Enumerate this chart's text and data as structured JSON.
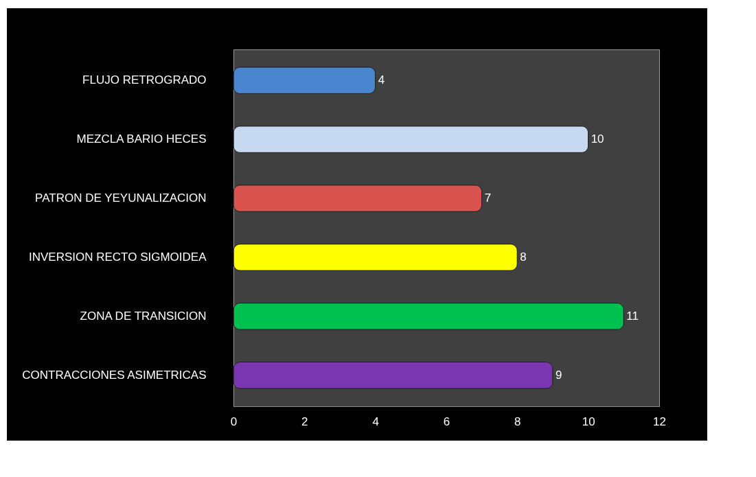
{
  "chart_data": {
    "type": "bar",
    "orientation": "horizontal",
    "categories": [
      "FLUJO RETROGRADO",
      "MEZCLA BARIO  HECES",
      "PATRON DE YEYUNALIZACION",
      "INVERSION RECTO SIGMOIDEA",
      "ZONA DE TRANSICION",
      "CONTRACCIONES ASIMETRICAS"
    ],
    "values": [
      4,
      10,
      7,
      8,
      11,
      9
    ],
    "colors": [
      "#4a86d0",
      "#c6d9f1",
      "#d9534f",
      "#ffff00",
      "#00c050",
      "#7a35b0"
    ],
    "xlim": [
      0,
      12
    ],
    "xticks": [
      0,
      2,
      4,
      6,
      8,
      10,
      12
    ],
    "data_labels": true,
    "grid": false,
    "legend": false
  }
}
